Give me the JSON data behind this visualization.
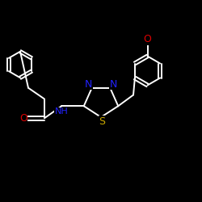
{
  "background_color": "#000000",
  "bond_color": "#ffffff",
  "atom_colors": {
    "N": "#2222ff",
    "S": "#ccaa00",
    "O": "#dd0000",
    "C": "#ffffff",
    "H": "#ffffff"
  },
  "figsize": [
    2.5,
    2.5
  ],
  "dpi": 100
}
